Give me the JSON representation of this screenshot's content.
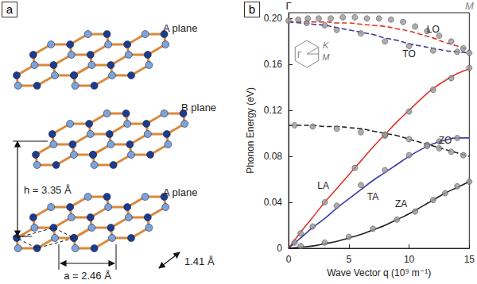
{
  "panel_a": {
    "label": "a",
    "planes": [
      "A plane",
      "B plane",
      "A plane"
    ],
    "interlayer_distance": "h = 3.35 Å",
    "lattice_constant": "a = 2.46 Å",
    "bond_length": "1.41 Å"
  },
  "chart_data": {
    "type": "line",
    "panel_label": "b",
    "xlabel": "Wave Vector q (10⁹ m⁻¹)",
    "ylabel": "Phonon Energy (eV)",
    "xlim": [
      0,
      15
    ],
    "xticks": [
      0,
      5,
      10,
      15
    ],
    "ylim": [
      0,
      0.205
    ],
    "yticks": [
      0,
      0.04,
      0.08,
      0.12,
      0.16,
      {
        "value": 0.2,
        "label": "0.20"
      }
    ],
    "grid": false,
    "x": [
      0,
      1,
      2,
      3,
      4,
      5,
      6,
      7,
      8,
      9,
      10,
      11,
      12,
      13,
      14,
      15
    ],
    "series": [
      {
        "name": "LO",
        "color": "#e0332a",
        "line_style": "dashed",
        "values": [
          0.197,
          0.197,
          0.197,
          0.197,
          0.196,
          0.196,
          0.195,
          0.194,
          0.193,
          0.191,
          0.189,
          0.186,
          0.183,
          0.179,
          0.176,
          0.172
        ]
      },
      {
        "name": "TO",
        "color": "#3b3ba6",
        "line_style": "dashed",
        "values": [
          0.197,
          0.196,
          0.195,
          0.194,
          0.192,
          0.19,
          0.188,
          0.186,
          0.183,
          0.181,
          0.178,
          0.176,
          0.174,
          0.172,
          0.171,
          0.17
        ]
      },
      {
        "name": "ZO",
        "color": "#222222",
        "line_style": "dashed",
        "values": [
          0.107,
          0.107,
          0.107,
          0.106,
          0.106,
          0.105,
          0.104,
          0.102,
          0.1,
          0.098,
          0.095,
          0.092,
          0.089,
          0.086,
          0.083,
          0.08
        ]
      },
      {
        "name": "LA",
        "color": "#e0332a",
        "line_style": "solid",
        "values": [
          0,
          0.014,
          0.027,
          0.04,
          0.052,
          0.064,
          0.076,
          0.088,
          0.099,
          0.11,
          0.12,
          0.13,
          0.139,
          0.146,
          0.152,
          0.156
        ]
      },
      {
        "name": "TA",
        "color": "#3b3ba6",
        "line_style": "solid",
        "values": [
          0,
          0.009,
          0.018,
          0.026,
          0.035,
          0.043,
          0.051,
          0.059,
          0.066,
          0.073,
          0.08,
          0.086,
          0.091,
          0.094,
          0.096,
          0.096
        ]
      },
      {
        "name": "ZA",
        "color": "#222222",
        "line_style": "solid",
        "values": [
          0,
          0.001,
          0.002,
          0.004,
          0.006,
          0.009,
          0.012,
          0.016,
          0.02,
          0.025,
          0.03,
          0.036,
          0.042,
          0.048,
          0.053,
          0.058
        ]
      }
    ],
    "points": {
      "type": "scatter",
      "color": "#9a9a9a",
      "marker": "circle",
      "x": [
        0,
        0.8,
        1.6,
        2.5,
        3.5,
        4.5,
        5.5,
        6.5,
        7.5,
        8.5,
        9.5,
        10.5,
        11.5,
        12.5,
        13.5,
        14.5,
        1.5,
        3,
        4,
        6,
        8,
        10,
        12,
        14,
        15,
        0.5,
        2,
        4,
        6,
        8,
        10,
        11.5,
        12.5,
        13.5,
        14.5,
        1,
        3,
        5.5,
        8,
        10,
        12,
        13.5,
        15,
        0.5,
        2,
        4,
        6,
        8,
        10,
        11.5,
        12.5,
        14,
        1,
        3,
        5,
        7,
        9,
        10.5,
        12,
        13,
        14,
        15
      ],
      "y": [
        0.198,
        0.199,
        0.2,
        0.2,
        0.2,
        0.201,
        0.201,
        0.2,
        0.2,
        0.199,
        0.197,
        0.193,
        0.189,
        0.185,
        0.18,
        0.174,
        0.196,
        0.194,
        0.19,
        0.187,
        0.18,
        0.176,
        0.172,
        0.171,
        0.17,
        0.107,
        0.106,
        0.104,
        0.101,
        0.098,
        0.095,
        0.09,
        0.087,
        0.084,
        0.081,
        0.013,
        0.04,
        0.07,
        0.099,
        0.119,
        0.138,
        0.148,
        0.157,
        0.005,
        0.019,
        0.037,
        0.055,
        0.068,
        0.081,
        0.089,
        0.093,
        0.096,
        0.002,
        0.005,
        0.01,
        0.017,
        0.025,
        0.032,
        0.042,
        0.048,
        0.054,
        0.058
      ]
    },
    "annotations": [
      {
        "text": "Γ",
        "x": 0
      },
      {
        "text": "M",
        "x": 15
      }
    ],
    "inset_labels": [
      "Γ",
      "K",
      "M"
    ]
  }
}
